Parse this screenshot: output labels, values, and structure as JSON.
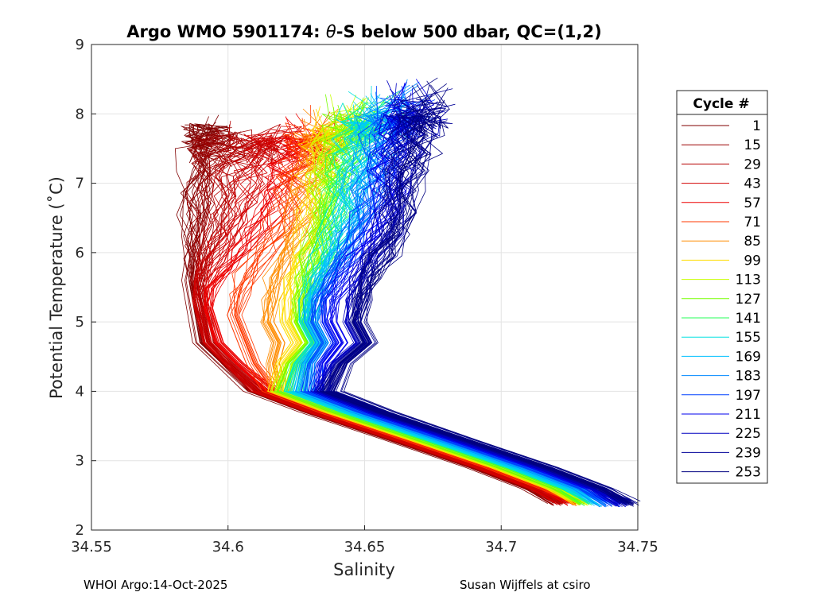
{
  "chart_data": {
    "type": "line",
    "title_prefix": "Argo WMO 5901174: ",
    "title_theta": "θ",
    "title_suffix": "-S below 500 dbar,  QC=(1,2)",
    "xlabel": "Salinity",
    "ylabel": "Potential Temperature (˚C)",
    "xlim": [
      34.55,
      34.75
    ],
    "ylim": [
      2,
      9
    ],
    "xticks": [
      "34.55",
      "34.6",
      "34.65",
      "34.7",
      "34.75"
    ],
    "yticks": [
      "2",
      "3",
      "4",
      "5",
      "6",
      "7",
      "8",
      "9"
    ],
    "grid": true,
    "legend": {
      "title": "Cycle #",
      "placement": "outside-right",
      "entries": [
        {
          "label": "1",
          "color": "#800000"
        },
        {
          "label": "15",
          "color": "#9b0000"
        },
        {
          "label": "29",
          "color": "#b60000"
        },
        {
          "label": "43",
          "color": "#d20000"
        },
        {
          "label": "57",
          "color": "#ed0000"
        },
        {
          "label": "71",
          "color": "#ff3a00"
        },
        {
          "label": "85",
          "color": "#ff8c00"
        },
        {
          "label": "99",
          "color": "#ffdd00"
        },
        {
          "label": "113",
          "color": "#c8ff00"
        },
        {
          "label": "127",
          "color": "#77ff00"
        },
        {
          "label": "141",
          "color": "#24ff59"
        },
        {
          "label": "155",
          "color": "#00e0e0"
        },
        {
          "label": "169",
          "color": "#00c0ff"
        },
        {
          "label": "183",
          "color": "#0088ff"
        },
        {
          "label": "197",
          "color": "#0040ff"
        },
        {
          "label": "211",
          "color": "#0000ee"
        },
        {
          "label": "225",
          "color": "#0000c0"
        },
        {
          "label": "239",
          "color": "#000098"
        },
        {
          "label": "253",
          "color": "#000080"
        }
      ]
    },
    "series": [
      {
        "name": "1",
        "color": "#800000",
        "profile": [
          [
            34.586,
            5.6
          ],
          [
            34.588,
            7.5
          ],
          [
            34.595,
            8.0
          ]
        ],
        "bottom": [
          34.72,
          2.35
        ]
      },
      {
        "name": "15",
        "color": "#9b0000",
        "profile": [
          [
            34.589,
            5.5
          ],
          [
            34.592,
            7.3
          ],
          [
            34.6,
            7.9
          ]
        ],
        "bottom": [
          34.721,
          2.35
        ]
      },
      {
        "name": "29",
        "color": "#b60000",
        "profile": [
          [
            34.589,
            5.4
          ],
          [
            34.6,
            7.1
          ],
          [
            34.612,
            7.9
          ]
        ],
        "bottom": [
          34.722,
          2.35
        ]
      },
      {
        "name": "43",
        "color": "#d20000",
        "profile": [
          [
            34.59,
            5.3
          ],
          [
            34.608,
            7.0
          ],
          [
            34.622,
            8.0
          ]
        ],
        "bottom": [
          34.723,
          2.35
        ]
      },
      {
        "name": "57",
        "color": "#ed0000",
        "profile": [
          [
            34.592,
            5.2
          ],
          [
            34.615,
            6.9
          ],
          [
            34.63,
            8.0
          ]
        ],
        "bottom": [
          34.725,
          2.35
        ]
      },
      {
        "name": "71",
        "color": "#ff3a00",
        "profile": [
          [
            34.602,
            5.1
          ],
          [
            34.622,
            6.9
          ],
          [
            34.634,
            8.1
          ]
        ],
        "bottom": [
          34.726,
          2.35
        ]
      },
      {
        "name": "85",
        "color": "#ff8c00",
        "profile": [
          [
            34.614,
            5.0
          ],
          [
            34.628,
            6.9
          ],
          [
            34.638,
            8.1
          ]
        ],
        "bottom": [
          34.728,
          2.35
        ]
      },
      {
        "name": "99",
        "color": "#ffdd00",
        "profile": [
          [
            34.622,
            5.0
          ],
          [
            34.633,
            6.9
          ],
          [
            34.642,
            8.2
          ]
        ],
        "bottom": [
          34.729,
          2.35
        ]
      },
      {
        "name": "113",
        "color": "#c8ff00",
        "profile": [
          [
            34.626,
            5.0
          ],
          [
            34.636,
            6.9
          ],
          [
            34.646,
            8.3
          ]
        ],
        "bottom": [
          34.73,
          2.35
        ]
      },
      {
        "name": "127",
        "color": "#77ff00",
        "profile": [
          [
            34.627,
            5.0
          ],
          [
            34.638,
            6.9
          ],
          [
            34.649,
            8.3
          ]
        ],
        "bottom": [
          34.731,
          2.35
        ]
      },
      {
        "name": "141",
        "color": "#24ff59",
        "profile": [
          [
            34.628,
            5.0
          ],
          [
            34.641,
            6.9
          ],
          [
            34.652,
            8.4
          ]
        ],
        "bottom": [
          34.733,
          2.35
        ]
      },
      {
        "name": "155",
        "color": "#00e0e0",
        "profile": [
          [
            34.629,
            5.0
          ],
          [
            34.644,
            6.9
          ],
          [
            34.655,
            8.4
          ]
        ],
        "bottom": [
          34.735,
          2.35
        ]
      },
      {
        "name": "169",
        "color": "#00c0ff",
        "profile": [
          [
            34.63,
            5.0
          ],
          [
            34.648,
            6.9
          ],
          [
            34.658,
            8.4
          ]
        ],
        "bottom": [
          34.737,
          2.33
        ]
      },
      {
        "name": "183",
        "color": "#0088ff",
        "profile": [
          [
            34.631,
            5.0
          ],
          [
            34.651,
            6.9
          ],
          [
            34.661,
            8.5
          ]
        ],
        "bottom": [
          34.739,
          2.33
        ]
      },
      {
        "name": "197",
        "color": "#0040ff",
        "profile": [
          [
            34.633,
            5.0
          ],
          [
            34.654,
            6.9
          ],
          [
            34.664,
            8.5
          ]
        ],
        "bottom": [
          34.741,
          2.33
        ]
      },
      {
        "name": "211",
        "color": "#0000ee",
        "profile": [
          [
            34.637,
            5.0
          ],
          [
            34.658,
            6.9
          ],
          [
            34.667,
            8.5
          ]
        ],
        "bottom": [
          34.743,
          2.33
        ]
      },
      {
        "name": "225",
        "color": "#0000c0",
        "profile": [
          [
            34.645,
            5.0
          ],
          [
            34.662,
            6.9
          ],
          [
            34.67,
            8.5
          ]
        ],
        "bottom": [
          34.745,
          2.33
        ]
      },
      {
        "name": "239",
        "color": "#000098",
        "profile": [
          [
            34.647,
            5.0
          ],
          [
            34.664,
            6.9
          ],
          [
            34.672,
            8.5
          ]
        ],
        "bottom": [
          34.747,
          2.33
        ]
      },
      {
        "name": "253",
        "color": "#000080",
        "profile": [
          [
            34.648,
            5.0
          ],
          [
            34.666,
            6.9
          ],
          [
            34.674,
            8.5
          ]
        ],
        "bottom": [
          34.748,
          2.33
        ]
      }
    ]
  },
  "footer": {
    "left": "WHOI Argo:14-Oct-2025",
    "right": "Susan Wijffels at csiro"
  }
}
